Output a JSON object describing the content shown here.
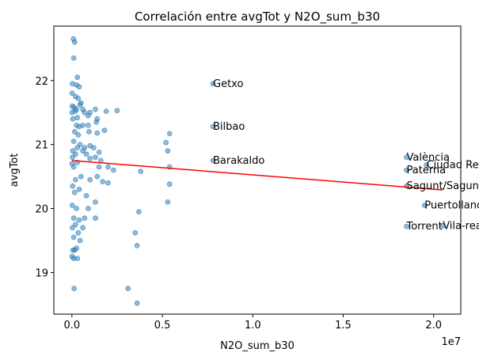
{
  "chart_data": {
    "type": "scatter",
    "title": "Correlación entre avgTot y N2O_sum_b30",
    "xlabel": "N2O_sum_b30",
    "ylabel": "avgTot",
    "x_scale_label": "1e7",
    "xlim": [
      -1000000,
      21500000
    ],
    "ylim": [
      18.35,
      22.85
    ],
    "x_ticks": [
      0,
      5000000,
      10000000,
      15000000,
      20000000
    ],
    "x_tick_labels": [
      "0.0",
      "0.5",
      "1.0",
      "1.5",
      "2.0"
    ],
    "y_ticks": [
      19,
      20,
      21,
      22
    ],
    "y_tick_labels": [
      "19",
      "20",
      "21",
      "22"
    ],
    "grid": false,
    "colors": {
      "points": "#1f77b4",
      "trend": "#ff0000"
    },
    "points": [
      {
        "x": 80000,
        "y": 22.65
      },
      {
        "x": 150000,
        "y": 22.6
      },
      {
        "x": 100000,
        "y": 22.35
      },
      {
        "x": 300000,
        "y": 22.05
      },
      {
        "x": 30000,
        "y": 21.95
      },
      {
        "x": 250000,
        "y": 21.93
      },
      {
        "x": 400000,
        "y": 21.9
      },
      {
        "x": 10000,
        "y": 21.8
      },
      {
        "x": 200000,
        "y": 21.75
      },
      {
        "x": 350000,
        "y": 21.72
      },
      {
        "x": 500000,
        "y": 21.65
      },
      {
        "x": 450000,
        "y": 21.62
      },
      {
        "x": 20000,
        "y": 21.6
      },
      {
        "x": 120000,
        "y": 21.58
      },
      {
        "x": 250000,
        "y": 21.55
      },
      {
        "x": 600000,
        "y": 21.55
      },
      {
        "x": 700000,
        "y": 21.5
      },
      {
        "x": 5000,
        "y": 21.5
      },
      {
        "x": 180000,
        "y": 21.52
      },
      {
        "x": 1000000,
        "y": 21.5
      },
      {
        "x": 1300000,
        "y": 21.55
      },
      {
        "x": 1900000,
        "y": 21.52
      },
      {
        "x": 2500000,
        "y": 21.53
      },
      {
        "x": 900000,
        "y": 21.45
      },
      {
        "x": 1400000,
        "y": 21.4
      },
      {
        "x": 50000,
        "y": 21.4
      },
      {
        "x": 300000,
        "y": 21.42
      },
      {
        "x": 1350000,
        "y": 21.35
      },
      {
        "x": 600000,
        "y": 21.3
      },
      {
        "x": 400000,
        "y": 21.28
      },
      {
        "x": 250000,
        "y": 21.3
      },
      {
        "x": 900000,
        "y": 21.3
      },
      {
        "x": 1800000,
        "y": 21.22
      },
      {
        "x": 150000,
        "y": 21.2
      },
      {
        "x": 1400000,
        "y": 21.18
      },
      {
        "x": 950000,
        "y": 21.2
      },
      {
        "x": 350000,
        "y": 21.15
      },
      {
        "x": 100000,
        "y": 21.05
      },
      {
        "x": 450000,
        "y": 21.0
      },
      {
        "x": 300000,
        "y": 20.95
      },
      {
        "x": 700000,
        "y": 20.95
      },
      {
        "x": 1000000,
        "y": 20.98
      },
      {
        "x": 1200000,
        "y": 20.95
      },
      {
        "x": 50000,
        "y": 20.9
      },
      {
        "x": 600000,
        "y": 20.9
      },
      {
        "x": 1500000,
        "y": 20.88
      },
      {
        "x": 200000,
        "y": 20.85
      },
      {
        "x": 800000,
        "y": 20.85
      },
      {
        "x": 1300000,
        "y": 20.8
      },
      {
        "x": 1000000,
        "y": 20.78
      },
      {
        "x": 30000,
        "y": 20.8
      },
      {
        "x": 1600000,
        "y": 20.75
      },
      {
        "x": 300000,
        "y": 20.72
      },
      {
        "x": 10000,
        "y": 20.7
      },
      {
        "x": 2000000,
        "y": 20.65
      },
      {
        "x": 1500000,
        "y": 20.65
      },
      {
        "x": 100000,
        "y": 20.65
      },
      {
        "x": 2300000,
        "y": 20.6
      },
      {
        "x": 3800000,
        "y": 20.58
      },
      {
        "x": 500000,
        "y": 20.5
      },
      {
        "x": 1400000,
        "y": 20.5
      },
      {
        "x": 1000000,
        "y": 20.45
      },
      {
        "x": 200000,
        "y": 20.45
      },
      {
        "x": 1700000,
        "y": 20.42
      },
      {
        "x": 2000000,
        "y": 20.4
      },
      {
        "x": 40000,
        "y": 20.35
      },
      {
        "x": 400000,
        "y": 20.3
      },
      {
        "x": 150000,
        "y": 20.25
      },
      {
        "x": 800000,
        "y": 20.2
      },
      {
        "x": 1300000,
        "y": 20.1
      },
      {
        "x": 20000,
        "y": 20.05
      },
      {
        "x": 250000,
        "y": 20.0
      },
      {
        "x": 900000,
        "y": 20.0
      },
      {
        "x": 3700000,
        "y": 19.95
      },
      {
        "x": 100000,
        "y": 19.85
      },
      {
        "x": 400000,
        "y": 19.82
      },
      {
        "x": 700000,
        "y": 19.85
      },
      {
        "x": 1300000,
        "y": 19.85
      },
      {
        "x": 200000,
        "y": 19.75
      },
      {
        "x": 30000,
        "y": 19.7
      },
      {
        "x": 600000,
        "y": 19.7
      },
      {
        "x": 350000,
        "y": 19.62
      },
      {
        "x": 3500000,
        "y": 19.62
      },
      {
        "x": 100000,
        "y": 19.55
      },
      {
        "x": 450000,
        "y": 19.5
      },
      {
        "x": 3600000,
        "y": 19.42
      },
      {
        "x": 250000,
        "y": 19.38
      },
      {
        "x": 50000,
        "y": 19.35
      },
      {
        "x": 150000,
        "y": 19.35
      },
      {
        "x": 10000,
        "y": 19.25
      },
      {
        "x": 100000,
        "y": 19.22
      },
      {
        "x": 300000,
        "y": 19.22
      },
      {
        "x": 3100000,
        "y": 18.75
      },
      {
        "x": 120000,
        "y": 18.75
      },
      {
        "x": 3600000,
        "y": 18.52
      },
      {
        "x": 5200000,
        "y": 21.03
      },
      {
        "x": 5400000,
        "y": 21.17
      },
      {
        "x": 5300000,
        "y": 20.9
      },
      {
        "x": 5400000,
        "y": 20.65
      },
      {
        "x": 5400000,
        "y": 20.38
      },
      {
        "x": 5300000,
        "y": 20.1
      },
      {
        "x": 7800000,
        "y": 21.95
      },
      {
        "x": 7800000,
        "y": 21.28
      },
      {
        "x": 7800000,
        "y": 20.75
      },
      {
        "x": 18500000,
        "y": 20.8
      },
      {
        "x": 18500000,
        "y": 20.6
      },
      {
        "x": 18500000,
        "y": 20.35
      },
      {
        "x": 19500000,
        "y": 20.05
      },
      {
        "x": 18500000,
        "y": 19.72
      },
      {
        "x": 20500000,
        "y": 19.73
      },
      {
        "x": 19600000,
        "y": 20.68
      }
    ],
    "annotations": [
      {
        "text": "Getxo",
        "x": 7800000,
        "y": 21.95
      },
      {
        "text": "Bilbao",
        "x": 7800000,
        "y": 21.28
      },
      {
        "text": "Barakaldo",
        "x": 7800000,
        "y": 20.75
      },
      {
        "text": "València",
        "x": 18500000,
        "y": 20.8
      },
      {
        "text": "Ciudad Real",
        "x": 19600000,
        "y": 20.68
      },
      {
        "text": "Paterna",
        "x": 18500000,
        "y": 20.6
      },
      {
        "text": "Sagunt/Sagunto",
        "x": 18500000,
        "y": 20.35
      },
      {
        "text": "Puertollano",
        "x": 19500000,
        "y": 20.05
      },
      {
        "text": "Torrent",
        "x": 18500000,
        "y": 19.72
      },
      {
        "text": "Vila-real",
        "x": 20500000,
        "y": 19.73
      }
    ],
    "trendline": {
      "x": [
        0,
        20500000
      ],
      "y": [
        20.75,
        20.29
      ]
    }
  }
}
